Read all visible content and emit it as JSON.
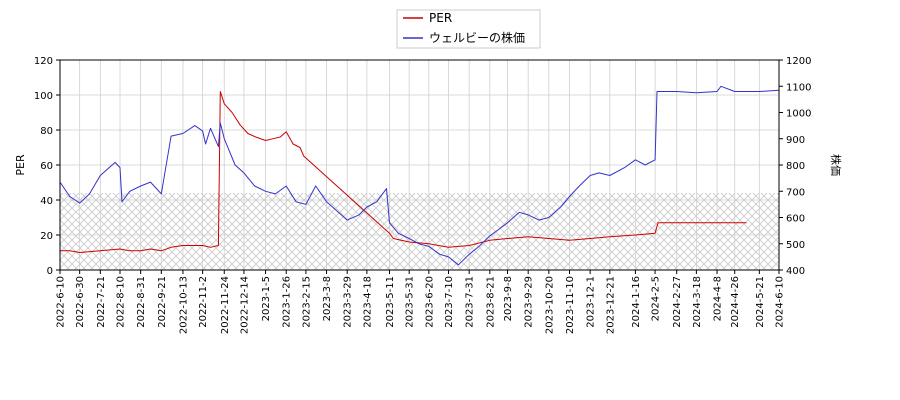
{
  "chart_data": {
    "type": "line",
    "legend": {
      "placement": "top-center",
      "entries": [
        "PER",
        "ウェルビーの株価"
      ]
    },
    "grid": true,
    "hatched_band": {
      "axis": "left",
      "from": 0,
      "to": 44
    },
    "left_axis": {
      "label": "PER",
      "range": [
        0,
        120
      ],
      "ticks": [
        "0",
        "20",
        "40",
        "60",
        "80",
        "100",
        "120"
      ]
    },
    "right_axis": {
      "label": "株価",
      "range": [
        400,
        1200
      ],
      "ticks": [
        "400",
        "500",
        "600",
        "700",
        "800",
        "900",
        "1000",
        "1100",
        "1200"
      ]
    },
    "x_axis": {
      "ticks": [
        "2022-6-10",
        "2022-6-30",
        "2022-7-21",
        "2022-8-10",
        "2022-8-31",
        "2022-9-21",
        "2022-10-13",
        "2022-11-2",
        "2022-11-24",
        "2022-12-14",
        "2023-1-5",
        "2023-1-26",
        "2023-2-15",
        "2023-3-8",
        "2023-3-29",
        "2023-4-18",
        "2023-5-11",
        "2023-5-31",
        "2023-6-20",
        "2023-7-10",
        "2023-7-31",
        "2023-8-21",
        "2023-9-8",
        "2023-9-29",
        "2023-10-20",
        "2023-11-10",
        "2023-12-1",
        "2023-12-21",
        "2024-1-16",
        "2024-2-5",
        "2024-2-27",
        "2024-3-18",
        "2024-4-8",
        "2024-4-26",
        "2024-5-21",
        "2024-6-10"
      ]
    },
    "series": [
      {
        "name": "PER",
        "axis": "left",
        "color": "#cc0000",
        "points": [
          [
            "2022-6-10",
            11
          ],
          [
            "2022-6-20",
            11
          ],
          [
            "2022-6-30",
            10
          ],
          [
            "2022-7-21",
            11
          ],
          [
            "2022-8-10",
            12
          ],
          [
            "2022-8-20",
            11
          ],
          [
            "2022-8-31",
            11
          ],
          [
            "2022-9-10",
            12
          ],
          [
            "2022-9-21",
            11
          ],
          [
            "2022-10-1",
            13
          ],
          [
            "2022-10-13",
            14
          ],
          [
            "2022-10-25",
            14
          ],
          [
            "2022-11-2",
            14
          ],
          [
            "2022-11-10",
            13
          ],
          [
            "2022-11-18",
            14
          ],
          [
            "2022-11-20",
            102
          ],
          [
            "2022-11-24",
            95
          ],
          [
            "2022-12-2",
            90
          ],
          [
            "2022-12-10",
            83
          ],
          [
            "2022-12-18",
            78
          ],
          [
            "2022-12-26",
            76
          ],
          [
            "2023-1-5",
            74
          ],
          [
            "2023-1-12",
            75
          ],
          [
            "2023-1-20",
            76
          ],
          [
            "2023-1-26",
            79
          ],
          [
            "2023-2-2",
            72
          ],
          [
            "2023-2-9",
            70
          ],
          [
            "2023-2-13",
            65
          ],
          [
            "2023-5-11",
            21
          ],
          [
            "2023-5-15",
            18
          ],
          [
            "2023-5-31",
            16
          ],
          [
            "2023-6-20",
            15
          ],
          [
            "2023-7-10",
            13
          ],
          [
            "2023-7-31",
            14
          ],
          [
            "2023-8-21",
            17
          ],
          [
            "2023-9-8",
            18
          ],
          [
            "2023-9-29",
            19
          ],
          [
            "2023-10-20",
            18
          ],
          [
            "2023-11-10",
            17
          ],
          [
            "2023-12-1",
            18
          ],
          [
            "2023-12-21",
            19
          ],
          [
            "2024-1-16",
            20
          ],
          [
            "2024-2-5",
            21
          ],
          [
            "2024-2-8",
            27
          ],
          [
            "2024-2-27",
            27
          ],
          [
            "2024-3-18",
            27
          ],
          [
            "2024-4-8",
            27
          ],
          [
            "2024-4-26",
            27
          ],
          [
            "2024-5-8",
            27
          ]
        ]
      },
      {
        "name": "ウェルビーの株価",
        "axis": "right",
        "color": "#3333cc",
        "points": [
          [
            "2022-6-10",
            735
          ],
          [
            "2022-6-20",
            680
          ],
          [
            "2022-6-30",
            655
          ],
          [
            "2022-7-10",
            690
          ],
          [
            "2022-7-21",
            760
          ],
          [
            "2022-8-5",
            810
          ],
          [
            "2022-8-10",
            790
          ],
          [
            "2022-8-12",
            660
          ],
          [
            "2022-8-20",
            700
          ],
          [
            "2022-8-31",
            720
          ],
          [
            "2022-9-10",
            735
          ],
          [
            "2022-9-21",
            690
          ],
          [
            "2022-10-1",
            910
          ],
          [
            "2022-10-13",
            920
          ],
          [
            "2022-10-25",
            950
          ],
          [
            "2022-11-2",
            930
          ],
          [
            "2022-11-5",
            880
          ],
          [
            "2022-11-10",
            940
          ],
          [
            "2022-11-18",
            870
          ],
          [
            "2022-11-20",
            960
          ],
          [
            "2022-11-24",
            900
          ],
          [
            "2022-12-5",
            800
          ],
          [
            "2022-12-14",
            770
          ],
          [
            "2022-12-25",
            720
          ],
          [
            "2023-1-5",
            700
          ],
          [
            "2023-1-15",
            690
          ],
          [
            "2023-1-26",
            720
          ],
          [
            "2023-2-5",
            660
          ],
          [
            "2023-2-15",
            650
          ],
          [
            "2023-2-25",
            720
          ],
          [
            "2023-3-8",
            660
          ],
          [
            "2023-3-20",
            620
          ],
          [
            "2023-3-29",
            590
          ],
          [
            "2023-4-10",
            610
          ],
          [
            "2023-4-18",
            640
          ],
          [
            "2023-4-28",
            660
          ],
          [
            "2023-5-8",
            710
          ],
          [
            "2023-5-11",
            580
          ],
          [
            "2023-5-20",
            540
          ],
          [
            "2023-5-31",
            520
          ],
          [
            "2023-6-10",
            500
          ],
          [
            "2023-6-20",
            490
          ],
          [
            "2023-7-1",
            460
          ],
          [
            "2023-7-10",
            450
          ],
          [
            "2023-7-20",
            420
          ],
          [
            "2023-7-31",
            460
          ],
          [
            "2023-8-10",
            490
          ],
          [
            "2023-8-21",
            530
          ],
          [
            "2023-9-1",
            560
          ],
          [
            "2023-9-8",
            580
          ],
          [
            "2023-9-20",
            620
          ],
          [
            "2023-9-29",
            610
          ],
          [
            "2023-10-10",
            590
          ],
          [
            "2023-10-20",
            600
          ],
          [
            "2023-11-1",
            640
          ],
          [
            "2023-11-10",
            680
          ],
          [
            "2023-11-20",
            720
          ],
          [
            "2023-12-1",
            760
          ],
          [
            "2023-12-10",
            770
          ],
          [
            "2023-12-21",
            760
          ],
          [
            "2024-1-5",
            790
          ],
          [
            "2024-1-16",
            820
          ],
          [
            "2024-1-26",
            800
          ],
          [
            "2024-2-5",
            820
          ],
          [
            "2024-2-7",
            1080
          ],
          [
            "2024-2-27",
            1080
          ],
          [
            "2024-3-18",
            1075
          ],
          [
            "2024-4-8",
            1080
          ],
          [
            "2024-4-12",
            1100
          ],
          [
            "2024-4-26",
            1080
          ],
          [
            "2024-5-21",
            1080
          ],
          [
            "2024-6-10",
            1085
          ]
        ]
      }
    ]
  }
}
